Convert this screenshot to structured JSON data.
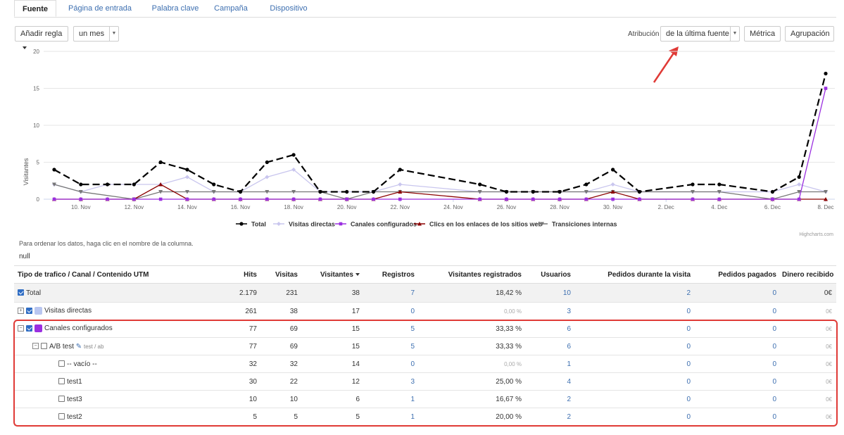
{
  "tabs": [
    "Fuente",
    "Página de entrada",
    "Palabra clave",
    "Campaña",
    "Dispositivo"
  ],
  "toolbar": {
    "add_rule": "Añadir regla",
    "period": "un mes",
    "attribution_label": "Atribución",
    "attribution_value": "de la última fuente",
    "metric": "Métrica",
    "grouping": "Agrupación"
  },
  "chart_data": {
    "type": "line",
    "ylabel": "Visitantes",
    "ylim": [
      0,
      20
    ],
    "yticks": [
      0,
      5,
      10,
      15,
      20
    ],
    "x": [
      "9 Nov",
      "10 Nov",
      "11 Nov",
      "12 Nov",
      "13 Nov",
      "14 Nov",
      "15 Nov",
      "16 Nov",
      "17 Nov",
      "18 Nov",
      "19 Nov",
      "20 Nov",
      "21 Nov",
      "22 Nov",
      "23 Nov",
      "24 Nov",
      "25 Nov",
      "26 Nov",
      "27 Nov",
      "28 Nov",
      "29 Nov",
      "30 Nov",
      "1 Dec",
      "2 Dec",
      "3 Dec",
      "4 Dec",
      "5 Dec",
      "6 Dec",
      "7 Dec",
      "8 Dec"
    ],
    "xticks": [
      "10. Nov",
      "12. Nov",
      "14. Nov",
      "16. Nov",
      "18. Nov",
      "20. Nov",
      "22. Nov",
      "24. Nov",
      "26. Nov",
      "28. Nov",
      "30. Nov",
      "2. Dec",
      "4. Dec",
      "6. Dec",
      "8. Dec"
    ],
    "series": [
      {
        "name": "Total",
        "color": "#000000",
        "marker": "circle",
        "values": [
          4,
          2,
          2,
          2,
          5,
          4,
          2,
          1,
          5,
          6,
          1,
          1,
          1,
          4,
          null,
          null,
          2,
          1,
          1,
          1,
          2,
          4,
          1,
          null,
          2,
          2,
          null,
          1,
          3,
          17
        ]
      },
      {
        "name": "Visitas directas",
        "color": "#c9c6ee",
        "marker": "diamond",
        "values": [
          2,
          1,
          2,
          2,
          2,
          3,
          1,
          1,
          3,
          4,
          1,
          1,
          1,
          2,
          null,
          null,
          1,
          1,
          1,
          1,
          1,
          2,
          1,
          null,
          1,
          1,
          null,
          1,
          2,
          1
        ]
      },
      {
        "name": "Canales configurados",
        "color": "#9b2fe0",
        "marker": "square",
        "values": [
          0,
          0,
          0,
          0,
          0,
          0,
          0,
          0,
          0,
          0,
          0,
          0,
          0,
          0,
          null,
          null,
          0,
          0,
          0,
          0,
          0,
          0,
          0,
          null,
          0,
          0,
          null,
          0,
          0,
          15
        ]
      },
      {
        "name": "Clics en los enlaces de los sitios web",
        "color": "#8b0000",
        "marker": "triangle",
        "values": [
          0,
          0,
          0,
          0,
          2,
          0,
          0,
          0,
          0,
          0,
          0,
          0,
          0,
          1,
          null,
          null,
          0,
          0,
          0,
          0,
          0,
          1,
          0,
          null,
          0,
          0,
          null,
          0,
          0,
          0
        ]
      },
      {
        "name": "Transiciones internas",
        "color": "#777777",
        "marker": "triangle-down",
        "values": [
          2,
          1,
          null,
          0,
          1,
          1,
          1,
          1,
          1,
          1,
          1,
          0,
          1,
          1,
          null,
          null,
          1,
          1,
          1,
          1,
          1,
          1,
          1,
          null,
          1,
          1,
          null,
          0,
          1,
          1
        ]
      }
    ],
    "grid": true,
    "legend": "bottom",
    "credits": "Highcharts.com"
  },
  "hint": "Para ordenar los datos, haga clic en el nombre de la columna.",
  "null_text": "null",
  "table": {
    "headers": [
      "Tipo de trafico / Canal / Contenido UTM",
      "Hits",
      "Visitas",
      "Visitantes",
      "Registros",
      "Visitantes registrados",
      "Usuarios",
      "Pedidos durante la visita",
      "Pedidos pagados",
      "Dinero recibido"
    ],
    "rows": [
      {
        "name": "Total",
        "hits": "2.179",
        "visits": "231",
        "visitors": "38",
        "reg": "7",
        "reg_visitors": "18,42 %",
        "users": "10",
        "orders": "2",
        "paid": "0",
        "money": "0€"
      },
      {
        "name": "Visitas directas",
        "hits": "261",
        "visits": "38",
        "visitors": "17",
        "reg": "0",
        "reg_visitors": "0,00 %",
        "users": "3",
        "orders": "0",
        "paid": "0",
        "money": "0€"
      },
      {
        "name": "Canales configurados",
        "hits": "77",
        "visits": "69",
        "visitors": "15",
        "reg": "5",
        "reg_visitors": "33,33 %",
        "users": "6",
        "orders": "0",
        "paid": "0",
        "money": "0€"
      },
      {
        "name": "A/B test",
        "sub": "test / ab",
        "hits": "77",
        "visits": "69",
        "visitors": "15",
        "reg": "5",
        "reg_visitors": "33,33 %",
        "users": "6",
        "orders": "0",
        "paid": "0",
        "money": "0€"
      },
      {
        "name": "-- vacío --",
        "hits": "32",
        "visits": "32",
        "visitors": "14",
        "reg": "0",
        "reg_visitors": "0,00 %",
        "users": "1",
        "orders": "0",
        "paid": "0",
        "money": "0€"
      },
      {
        "name": "test1",
        "hits": "30",
        "visits": "22",
        "visitors": "12",
        "reg": "3",
        "reg_visitors": "25,00 %",
        "users": "4",
        "orders": "0",
        "paid": "0",
        "money": "0€"
      },
      {
        "name": "test3",
        "hits": "10",
        "visits": "10",
        "visitors": "6",
        "reg": "1",
        "reg_visitors": "16,67 %",
        "users": "2",
        "orders": "0",
        "paid": "0",
        "money": "0€"
      },
      {
        "name": "test2",
        "hits": "5",
        "visits": "5",
        "visitors": "5",
        "reg": "1",
        "reg_visitors": "20,00 %",
        "users": "2",
        "orders": "0",
        "paid": "0",
        "money": "0€"
      }
    ]
  },
  "colors": {
    "link": "#3d6fb0",
    "highlight": "#e03a36",
    "arrow": "#e03a36"
  },
  "icons": {
    "sort": "sort-down-icon",
    "edit": "edit-icon",
    "expand": "collapse-icon"
  }
}
